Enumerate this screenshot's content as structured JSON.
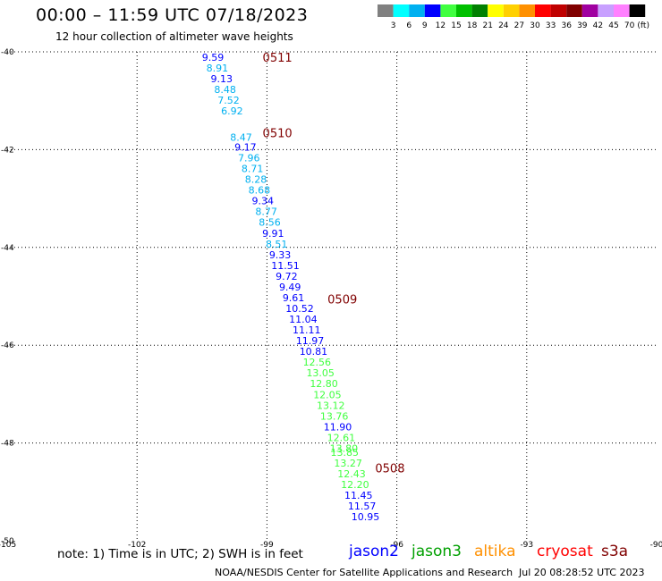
{
  "header": {
    "title": "00:00 – 11:59 UTC 07/18/2023",
    "subtitle": "12 hour collection of altimeter wave heights"
  },
  "legend": {
    "unit": "(ft)",
    "bins": [
      {
        "label": "3",
        "color": "#808080"
      },
      {
        "label": "6",
        "color": "#00ffff"
      },
      {
        "label": "9",
        "color": "#00b0f0"
      },
      {
        "label": "12",
        "color": "#0000ff"
      },
      {
        "label": "15",
        "color": "#40ff40"
      },
      {
        "label": "18",
        "color": "#00c000"
      },
      {
        "label": "21",
        "color": "#008000"
      },
      {
        "label": "24",
        "color": "#ffff00"
      },
      {
        "label": "27",
        "color": "#ffd000"
      },
      {
        "label": "30",
        "color": "#ff9000"
      },
      {
        "label": "33",
        "color": "#ff0000"
      },
      {
        "label": "36",
        "color": "#c00000"
      },
      {
        "label": "39",
        "color": "#800000"
      },
      {
        "label": "42",
        "color": "#a000a0"
      },
      {
        "label": "45",
        "color": "#c8a0ff"
      },
      {
        "label": "70",
        "color": "#ff80ff"
      },
      {
        "label": "",
        "color": "#000000"
      }
    ]
  },
  "map": {
    "lon_range": [
      -105,
      -90
    ],
    "lat_range": [
      -50,
      -40
    ],
    "lon_ticks": [
      "-105",
      "-102",
      "-99",
      "-96",
      "-93",
      "-90"
    ],
    "lat_ticks": [
      "-40",
      "-42",
      "-44",
      "-46",
      "-48",
      "-50"
    ],
    "grid": "dotted",
    "time_labels": [
      {
        "text": "0511",
        "lon": -99.1,
        "lat": -40.2,
        "color": "#800000"
      },
      {
        "text": "0510",
        "lon": -99.1,
        "lat": -41.75,
        "color": "#800000"
      },
      {
        "text": "0509",
        "lon": -97.6,
        "lat": -45.15,
        "color": "#800000"
      },
      {
        "text": "0508",
        "lon": -96.5,
        "lat": -48.6,
        "color": "#800000"
      }
    ],
    "observations": [
      {
        "text": "9.59",
        "lon": -100.5,
        "lat": -40.18,
        "color": "#0000ff"
      },
      {
        "text": "8.91",
        "lon": -100.4,
        "lat": -40.4,
        "color": "#00b0f0"
      },
      {
        "text": "9.13",
        "lon": -100.3,
        "lat": -40.62,
        "color": "#0000ff"
      },
      {
        "text": "8.48",
        "lon": -100.22,
        "lat": -40.84,
        "color": "#00b0f0"
      },
      {
        "text": "7.52",
        "lon": -100.14,
        "lat": -41.06,
        "color": "#00b0f0"
      },
      {
        "text": "6.92",
        "lon": -100.06,
        "lat": -41.28,
        "color": "#00b0f0"
      },
      {
        "text": "8.47",
        "lon": -99.85,
        "lat": -41.82,
        "color": "#00b0f0"
      },
      {
        "text": "9.17",
        "lon": -99.75,
        "lat": -42.02,
        "color": "#0000ff"
      },
      {
        "text": "7.96",
        "lon": -99.67,
        "lat": -42.24,
        "color": "#00b0f0"
      },
      {
        "text": "8.71",
        "lon": -99.59,
        "lat": -42.46,
        "color": "#00b0f0"
      },
      {
        "text": "8.28",
        "lon": -99.51,
        "lat": -42.68,
        "color": "#00b0f0"
      },
      {
        "text": "8.68",
        "lon": -99.43,
        "lat": -42.9,
        "color": "#00b0f0"
      },
      {
        "text": "9.34",
        "lon": -99.35,
        "lat": -43.12,
        "color": "#0000ff"
      },
      {
        "text": "8.77",
        "lon": -99.27,
        "lat": -43.34,
        "color": "#00b0f0"
      },
      {
        "text": "8.56",
        "lon": -99.19,
        "lat": -43.56,
        "color": "#00b0f0"
      },
      {
        "text": "9.91",
        "lon": -99.11,
        "lat": -43.78,
        "color": "#0000ff"
      },
      {
        "text": "8.51",
        "lon": -99.03,
        "lat": -44.0,
        "color": "#00b0f0"
      },
      {
        "text": "9.33",
        "lon": -98.95,
        "lat": -44.22,
        "color": "#0000ff"
      },
      {
        "text": "11.51",
        "lon": -98.9,
        "lat": -44.44,
        "color": "#0000ff"
      },
      {
        "text": "9.72",
        "lon": -98.8,
        "lat": -44.66,
        "color": "#0000ff"
      },
      {
        "text": "9.49",
        "lon": -98.72,
        "lat": -44.88,
        "color": "#0000ff"
      },
      {
        "text": "9.61",
        "lon": -98.64,
        "lat": -45.1,
        "color": "#0000ff"
      },
      {
        "text": "10.52",
        "lon": -98.57,
        "lat": -45.32,
        "color": "#0000ff"
      },
      {
        "text": "11.04",
        "lon": -98.49,
        "lat": -45.54,
        "color": "#0000ff"
      },
      {
        "text": "11.11",
        "lon": -98.41,
        "lat": -45.76,
        "color": "#0000ff"
      },
      {
        "text": "11.97",
        "lon": -98.33,
        "lat": -45.98,
        "color": "#0000ff"
      },
      {
        "text": "10.81",
        "lon": -98.25,
        "lat": -46.2,
        "color": "#0000ff"
      },
      {
        "text": "12.56",
        "lon": -98.17,
        "lat": -46.42,
        "color": "#40ff40"
      },
      {
        "text": "13.05",
        "lon": -98.09,
        "lat": -46.64,
        "color": "#40ff40"
      },
      {
        "text": "12.80",
        "lon": -98.01,
        "lat": -46.86,
        "color": "#40ff40"
      },
      {
        "text": "12.05",
        "lon": -97.93,
        "lat": -47.08,
        "color": "#40ff40"
      },
      {
        "text": "13.12",
        "lon": -97.85,
        "lat": -47.3,
        "color": "#40ff40"
      },
      {
        "text": "13.76",
        "lon": -97.77,
        "lat": -47.52,
        "color": "#40ff40"
      },
      {
        "text": "11.90",
        "lon": -97.69,
        "lat": -47.74,
        "color": "#0000ff"
      },
      {
        "text": "12.61",
        "lon": -97.61,
        "lat": -47.96,
        "color": "#40ff40"
      },
      {
        "text": "13.80",
        "lon": -97.55,
        "lat": -48.18,
        "color": "#40ff40"
      },
      {
        "text": "13.85",
        "lon": -97.53,
        "lat": -48.26,
        "color": "#40ff40"
      },
      {
        "text": "13.27",
        "lon": -97.45,
        "lat": -48.48,
        "color": "#40ff40"
      },
      {
        "text": "12.43",
        "lon": -97.37,
        "lat": -48.7,
        "color": "#40ff40"
      },
      {
        "text": "12.20",
        "lon": -97.29,
        "lat": -48.92,
        "color": "#40ff40"
      },
      {
        "text": "11.45",
        "lon": -97.21,
        "lat": -49.14,
        "color": "#0000ff"
      },
      {
        "text": "11.57",
        "lon": -97.13,
        "lat": -49.36,
        "color": "#0000ff"
      },
      {
        "text": "10.95",
        "lon": -97.05,
        "lat": -49.58,
        "color": "#0000ff"
      }
    ]
  },
  "footer": {
    "note": "note:  1) Time is in UTC;  2) SWH is in feet",
    "satellites": [
      {
        "name": "jason2",
        "color": "#0000ff"
      },
      {
        "name": "jason3",
        "color": "#00a000"
      },
      {
        "name": "altika",
        "color": "#ff9000"
      },
      {
        "name": "cryosat",
        "color": "#ff0000"
      },
      {
        "name": "s3a",
        "color": "#800000"
      }
    ],
    "credit": "NOAA/NESDIS Center for Satellite Applications and Research",
    "timestamp": "Jul 20 08:28:52 UTC 2023"
  }
}
